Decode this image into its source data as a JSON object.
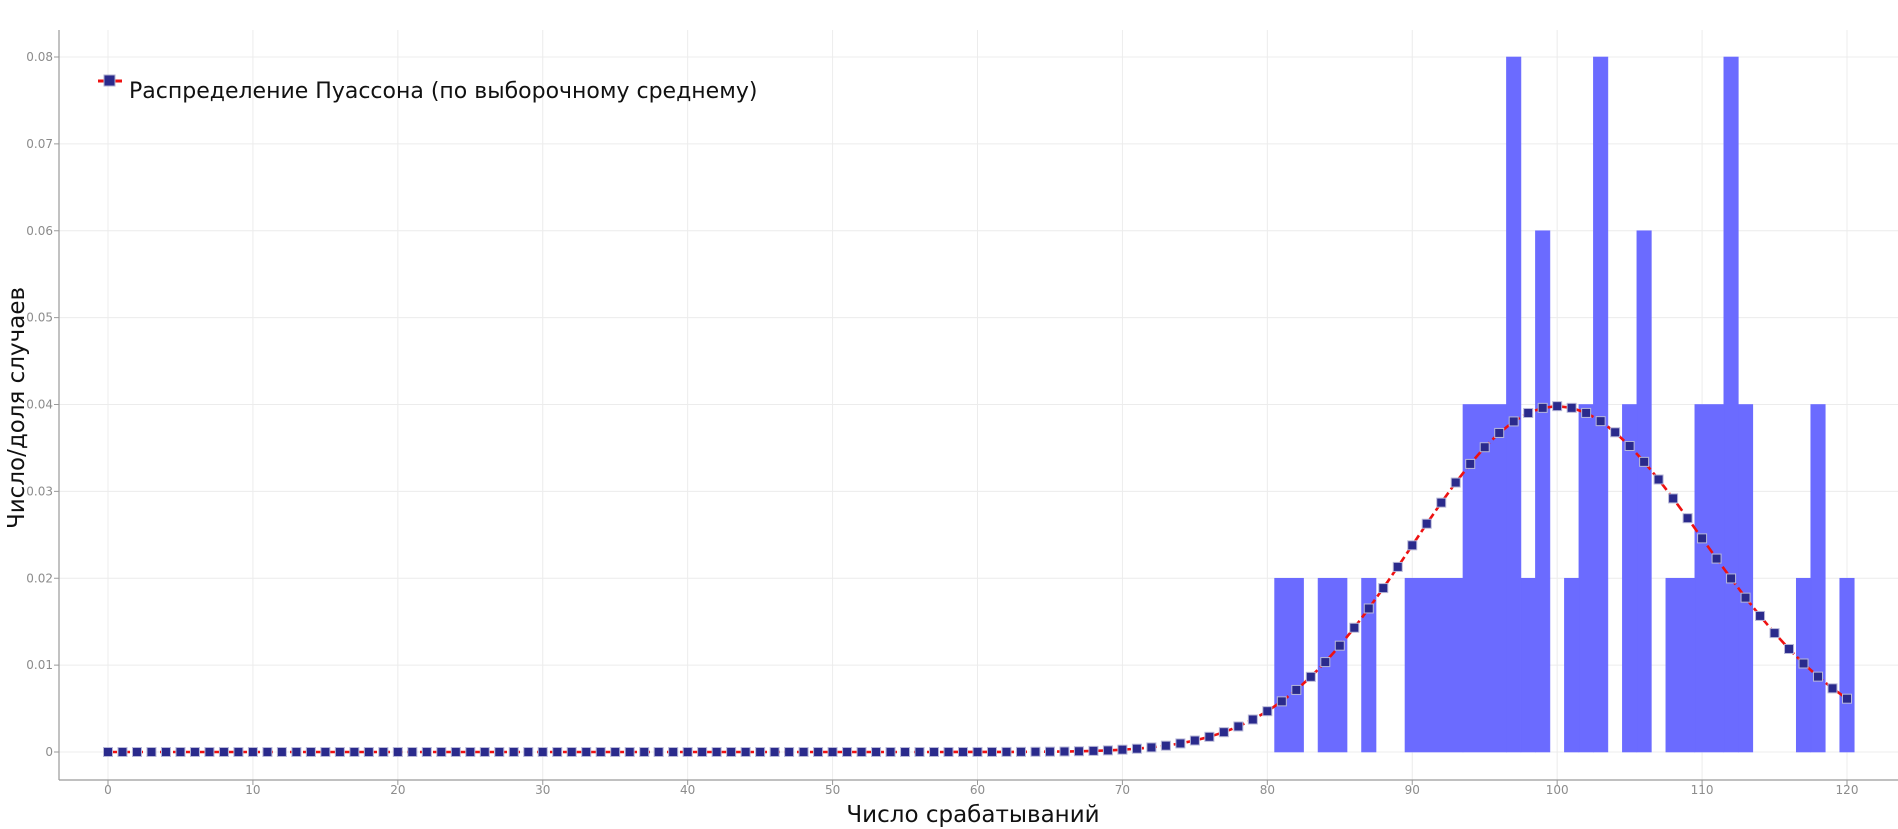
{
  "chart_data": {
    "type": "bar",
    "title": "",
    "xlabel": "Число срабатываний",
    "ylabel": "Число/доля случаев",
    "xlim": [
      0,
      120
    ],
    "ylim": [
      0,
      0.08
    ],
    "grid": true,
    "legend_position": "top-left",
    "x_ticks": [
      "0",
      "10",
      "20",
      "30",
      "40",
      "50",
      "60",
      "70",
      "80",
      "90",
      "100",
      "110",
      "120"
    ],
    "y_ticks": [
      "0",
      "0.01",
      "0.02",
      "0.03",
      "0.04",
      "0.05",
      "0.06",
      "0.07",
      "0.08"
    ],
    "histogram": {
      "color": "#6b6bff",
      "bins": [
        {
          "x0": 80.5,
          "x1": 82.5,
          "value": 0.02
        },
        {
          "x0": 83.5,
          "x1": 85.5,
          "value": 0.02
        },
        {
          "x0": 86.5,
          "x1": 87.5,
          "value": 0.02
        },
        {
          "x0": 89.5,
          "x1": 93.5,
          "value": 0.02
        },
        {
          "x0": 93.5,
          "x1": 96.5,
          "value": 0.04
        },
        {
          "x0": 96.5,
          "x1": 97.5,
          "value": 0.08
        },
        {
          "x0": 97.5,
          "x1": 98.5,
          "value": 0.02
        },
        {
          "x0": 98.5,
          "x1": 99.5,
          "value": 0.06
        },
        {
          "x0": 100.5,
          "x1": 101.5,
          "value": 0.02
        },
        {
          "x0": 101.5,
          "x1": 102.5,
          "value": 0.04
        },
        {
          "x0": 102.5,
          "x1": 103.5,
          "value": 0.08
        },
        {
          "x0": 104.5,
          "x1": 105.5,
          "value": 0.04
        },
        {
          "x0": 105.5,
          "x1": 106.5,
          "value": 0.06
        },
        {
          "x0": 107.5,
          "x1": 109.5,
          "value": 0.02
        },
        {
          "x0": 109.5,
          "x1": 111.5,
          "value": 0.04
        },
        {
          "x0": 111.5,
          "x1": 112.5,
          "value": 0.08
        },
        {
          "x0": 112.5,
          "x1": 113.5,
          "value": 0.04
        },
        {
          "x0": 116.5,
          "x1": 117.5,
          "value": 0.02
        },
        {
          "x0": 117.5,
          "x1": 118.5,
          "value": 0.04
        },
        {
          "x0": 119.5,
          "x1": 120.5,
          "value": 0.02
        }
      ]
    },
    "series": [
      {
        "name": "Распределение Пуассона (по выборочному среднему)",
        "type": "line",
        "line_color": "#ee1111",
        "marker_color": "#2a2a8c",
        "mean": 100.5,
        "x_range": [
          0,
          120
        ]
      }
    ]
  }
}
